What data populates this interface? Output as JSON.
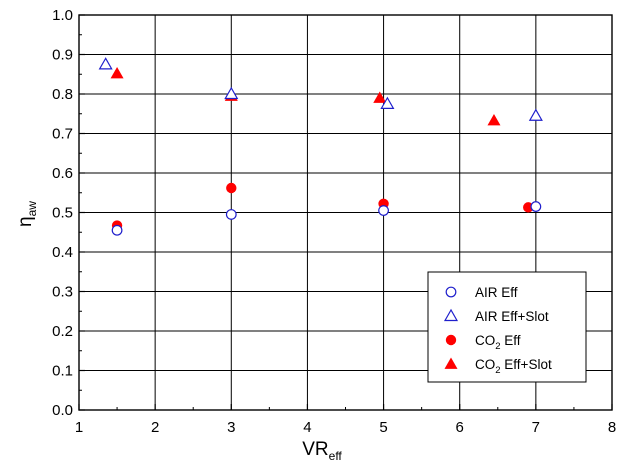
{
  "chart_data": {
    "type": "scatter",
    "title": "",
    "xlabel": {
      "main": "VR",
      "sub": "eff"
    },
    "ylabel": {
      "main": "η",
      "sub": "aw"
    },
    "xlim": [
      1,
      8
    ],
    "ylim": [
      0.0,
      1.0
    ],
    "xticks": [
      "1",
      "2",
      "3",
      "4",
      "5",
      "6",
      "7",
      "8"
    ],
    "yticks": [
      "0.0",
      "0.1",
      "0.2",
      "0.3",
      "0.4",
      "0.5",
      "0.6",
      "0.7",
      "0.8",
      "0.9",
      "1.0"
    ],
    "grid": true,
    "legend_position": "bottom-right",
    "series": [
      {
        "name": "AIR Eff",
        "legend": {
          "main": "AIR Eff",
          "sub": "",
          "tail": ""
        },
        "marker": "circle",
        "filled": false,
        "color": "#1f1fcc",
        "x": [
          1.5,
          3.0,
          5.0,
          7.0
        ],
        "y": [
          0.455,
          0.495,
          0.505,
          0.515
        ]
      },
      {
        "name": "AIR Eff+Slot",
        "legend": {
          "main": "AIR Eff+Slot",
          "sub": "",
          "tail": ""
        },
        "marker": "triangle",
        "filled": false,
        "color": "#1f1fcc",
        "x": [
          1.35,
          3.0,
          5.05,
          7.0
        ],
        "y": [
          0.875,
          0.8,
          0.775,
          0.745
        ]
      },
      {
        "name": "CO2 Eff",
        "legend": {
          "main": "CO",
          "sub": "2",
          "tail": " Eff"
        },
        "marker": "circle",
        "filled": true,
        "color": "#ff0000",
        "x": [
          1.5,
          3.0,
          5.0,
          6.9
        ],
        "y": [
          0.467,
          0.562,
          0.522,
          0.513
        ]
      },
      {
        "name": "CO2 Eff+Slot",
        "legend": {
          "main": "CO",
          "sub": "2",
          "tail": " Eff+Slot"
        },
        "marker": "triangle",
        "filled": true,
        "color": "#ff0000",
        "x": [
          1.5,
          3.0,
          4.95,
          6.45
        ],
        "y": [
          0.852,
          0.795,
          0.79,
          0.733
        ]
      }
    ]
  }
}
